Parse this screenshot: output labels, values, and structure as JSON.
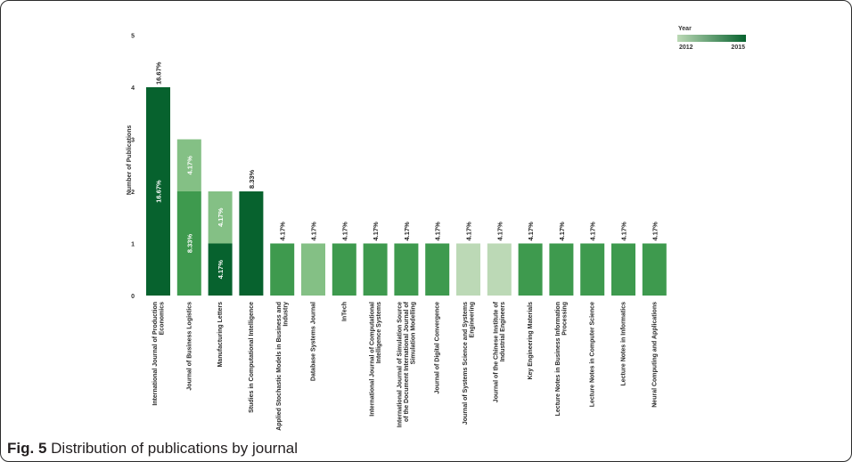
{
  "caption": {
    "label": "Fig. 5",
    "text": "Distribution of publications by journal"
  },
  "legend": {
    "title": "Year",
    "min_label": "2012",
    "max_label": "2015"
  },
  "colors": {
    "2012": "#bcd9b6",
    "2013": "#84c085",
    "2014": "#3e9a4e",
    "2015": "#07622e"
  },
  "chart_data": {
    "type": "bar",
    "stacked": true,
    "ylabel": "Number of Publications",
    "xlabel": "",
    "ylim": [
      0,
      5
    ],
    "yticks": [
      0,
      1,
      2,
      3,
      4,
      5
    ],
    "grid": false,
    "legend_position": "top-right",
    "categories": [
      {
        "name": "International Journal of Production Economics",
        "segments": [
          {
            "year": "2015",
            "value": 4,
            "label": "16.67%"
          }
        ]
      },
      {
        "name": "Journal of Business Logistics",
        "segments": [
          {
            "year": "2014",
            "value": 2,
            "label": "8.33%"
          },
          {
            "year": "2013",
            "value": 1,
            "label": "4.17%"
          }
        ]
      },
      {
        "name": "Manufacturing Letters",
        "segments": [
          {
            "year": "2015",
            "value": 1,
            "label": "4.17%"
          },
          {
            "year": "2013",
            "value": 1,
            "label": "4.17%"
          }
        ]
      },
      {
        "name": "Studies in Computational Intelligence",
        "segments": [
          {
            "year": "2015",
            "value": 2,
            "label": ""
          }
        ],
        "total_label": "8.33%"
      },
      {
        "name": "Applied Stochastic Models in Business and Industry",
        "segments": [
          {
            "year": "2014",
            "value": 1,
            "label": ""
          }
        ],
        "total_label": "4.17%"
      },
      {
        "name": "Database Systems Journal",
        "segments": [
          {
            "year": "2013",
            "value": 1,
            "label": ""
          }
        ],
        "total_label": "4.17%"
      },
      {
        "name": "InTech",
        "segments": [
          {
            "year": "2014",
            "value": 1,
            "label": ""
          }
        ],
        "total_label": "4.17%"
      },
      {
        "name": "International Journal of Computational Intelligence Systems",
        "segments": [
          {
            "year": "2014",
            "value": 1,
            "label": ""
          }
        ],
        "total_label": "4.17%"
      },
      {
        "name": "International Journal of Simulation Source of the Document International Journal of Simulation Modelling",
        "segments": [
          {
            "year": "2014",
            "value": 1,
            "label": ""
          }
        ],
        "total_label": "4.17%"
      },
      {
        "name": "Journal of Digital Convergence",
        "segments": [
          {
            "year": "2014",
            "value": 1,
            "label": ""
          }
        ],
        "total_label": "4.17%"
      },
      {
        "name": "Journal of Systems Science and Systems Engineering",
        "segments": [
          {
            "year": "2012",
            "value": 1,
            "label": ""
          }
        ],
        "total_label": "4.17%"
      },
      {
        "name": "Journal of the Chinese Institute of Industrial Engineers",
        "segments": [
          {
            "year": "2012",
            "value": 1,
            "label": ""
          }
        ],
        "total_label": "4.17%"
      },
      {
        "name": "Key Engineering Materials",
        "segments": [
          {
            "year": "2014",
            "value": 1,
            "label": ""
          }
        ],
        "total_label": "4.17%"
      },
      {
        "name": "Lecture Notes in Business Information Processing",
        "segments": [
          {
            "year": "2014",
            "value": 1,
            "label": ""
          }
        ],
        "total_label": "4.17%"
      },
      {
        "name": "Lecture Notes in Computer Science",
        "segments": [
          {
            "year": "2014",
            "value": 1,
            "label": ""
          }
        ],
        "total_label": "4.17%"
      },
      {
        "name": "Lecture Notes in Informatics",
        "segments": [
          {
            "year": "2014",
            "value": 1,
            "label": ""
          }
        ],
        "total_label": "4.17%"
      },
      {
        "name": "Neural Computing and Applications",
        "segments": [
          {
            "year": "2014",
            "value": 1,
            "label": ""
          }
        ],
        "total_label": "4.17%"
      }
    ],
    "total_labels_first_cat": "16.67%"
  }
}
